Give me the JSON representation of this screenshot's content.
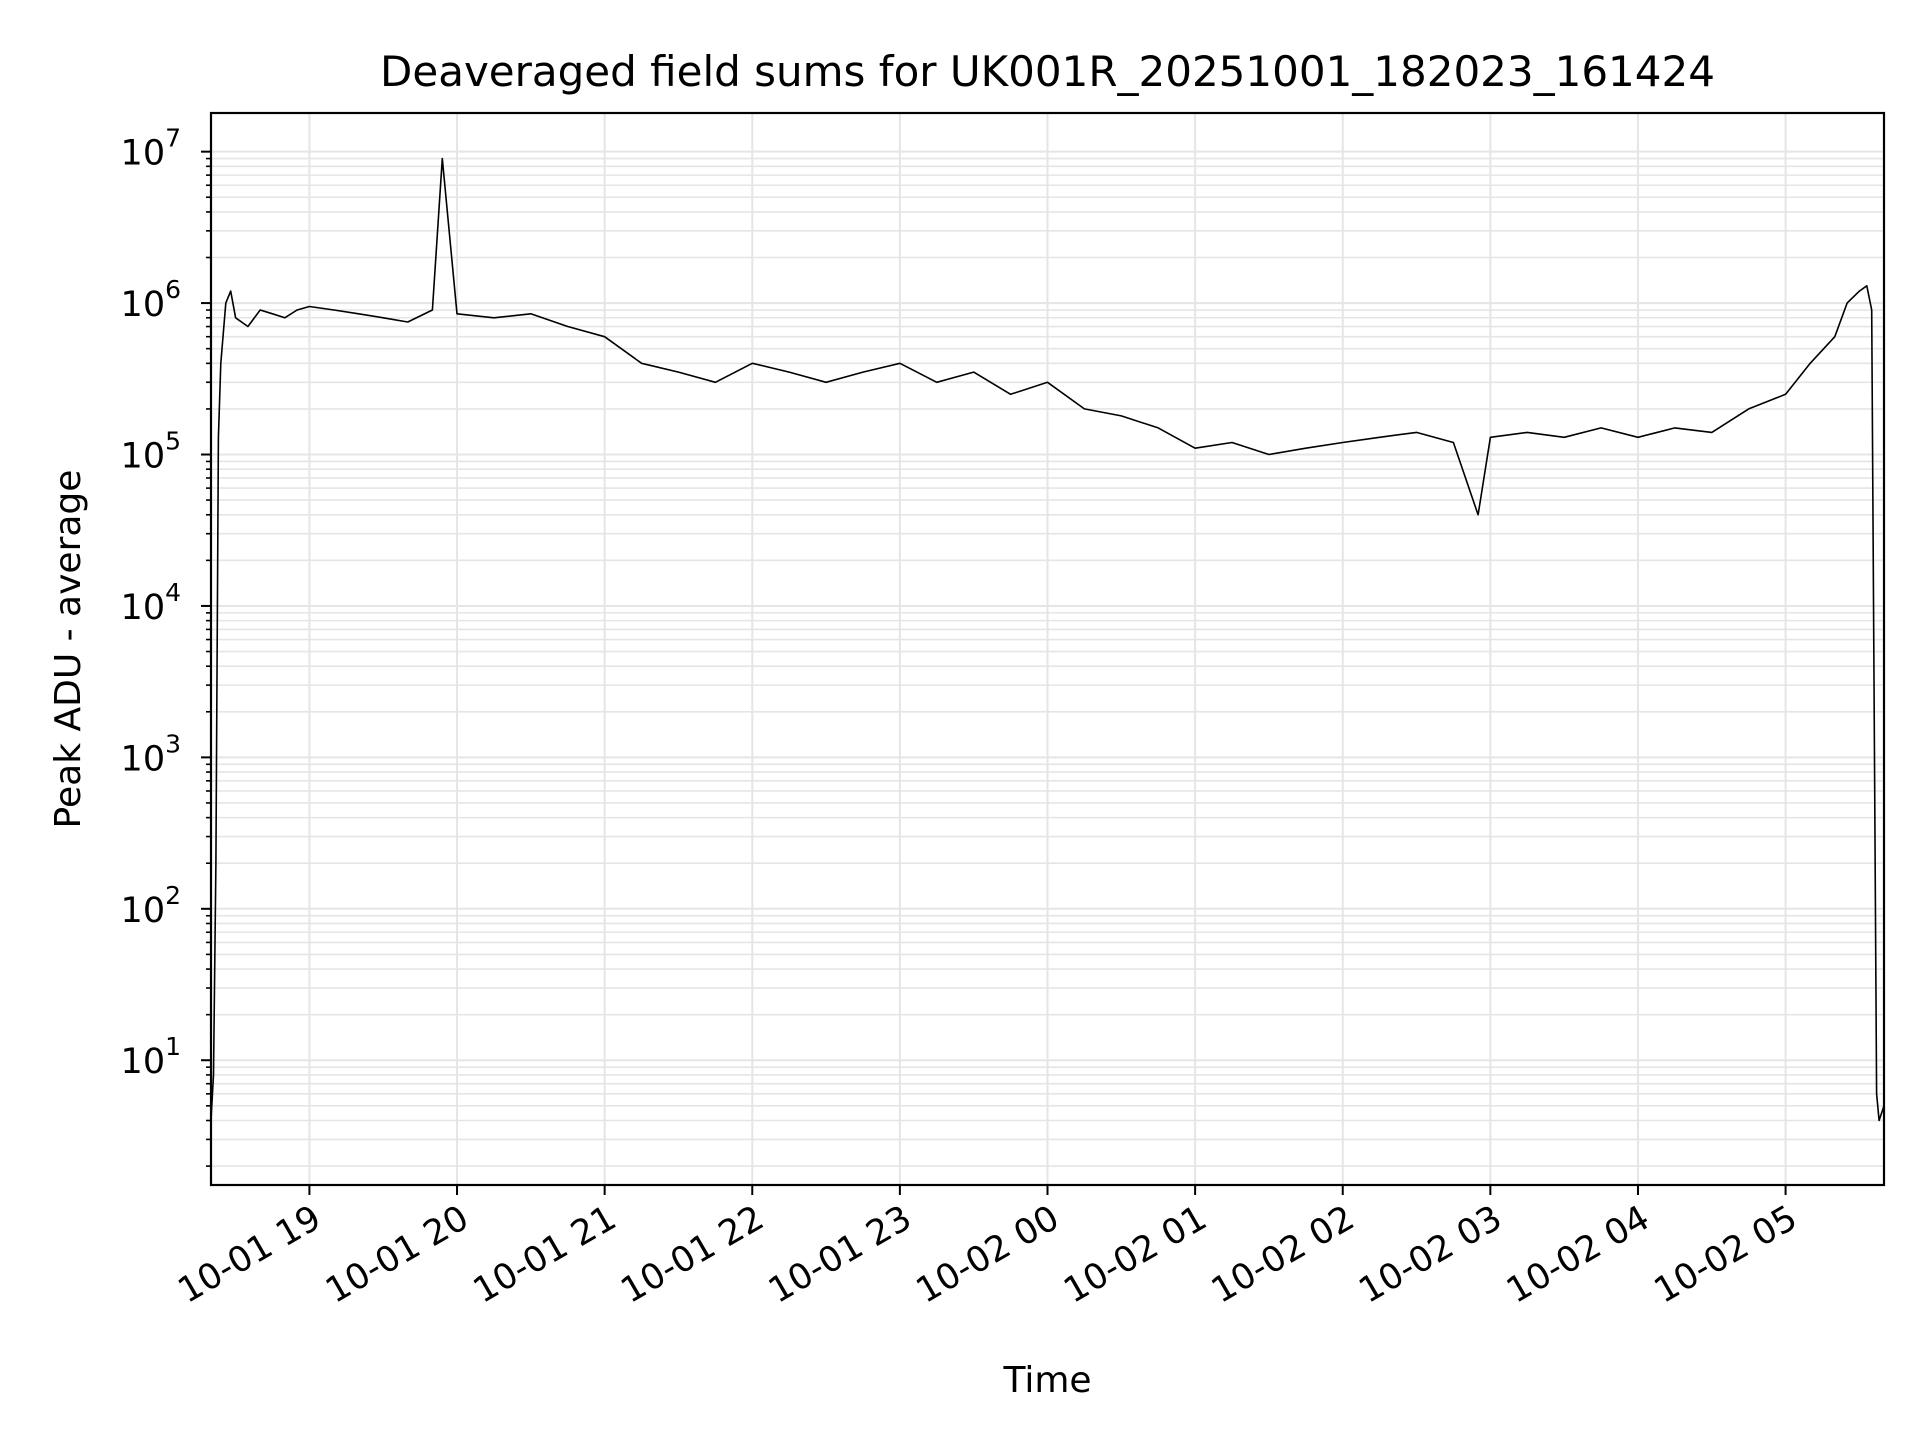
{
  "chart_data": {
    "type": "line",
    "title": "Deaveraged field sums for UK001R_20251001_182023_161424",
    "xlabel": "Time",
    "ylabel": "Peak ADU - average",
    "yscale": "log",
    "ylim": [
      1.5,
      18000000
    ],
    "xlim": [
      "2025-10-01 18:20",
      "2025-10-02 05:40"
    ],
    "grid": true,
    "line_color": "#000000",
    "grid_color": "#e5e5e5",
    "x_ticks": [
      {
        "t": "2025-10-01 19:00",
        "label": "10-01 19"
      },
      {
        "t": "2025-10-01 20:00",
        "label": "10-01 20"
      },
      {
        "t": "2025-10-01 21:00",
        "label": "10-01 21"
      },
      {
        "t": "2025-10-01 22:00",
        "label": "10-01 22"
      },
      {
        "t": "2025-10-01 23:00",
        "label": "10-01 23"
      },
      {
        "t": "2025-10-02 00:00",
        "label": "10-02 00"
      },
      {
        "t": "2025-10-02 01:00",
        "label": "10-02 01"
      },
      {
        "t": "2025-10-02 02:00",
        "label": "10-02 02"
      },
      {
        "t": "2025-10-02 03:00",
        "label": "10-02 03"
      },
      {
        "t": "2025-10-02 04:00",
        "label": "10-02 04"
      },
      {
        "t": "2025-10-02 05:00",
        "label": "10-02 05"
      }
    ],
    "y_ticks": [
      {
        "value": 10,
        "base": "10",
        "exp": "1"
      },
      {
        "value": 100,
        "base": "10",
        "exp": "2"
      },
      {
        "value": 1000,
        "base": "10",
        "exp": "3"
      },
      {
        "value": 10000,
        "base": "10",
        "exp": "4"
      },
      {
        "value": 100000,
        "base": "10",
        "exp": "5"
      },
      {
        "value": 1000000,
        "base": "10",
        "exp": "6"
      },
      {
        "value": 10000000,
        "base": "10",
        "exp": "7"
      }
    ],
    "series": [
      {
        "x": [
          "2025-10-01 18:20",
          "2025-10-01 18:21",
          "2025-10-01 18:22",
          "2025-10-01 18:23",
          "2025-10-01 18:24",
          "2025-10-01 18:26",
          "2025-10-01 18:28",
          "2025-10-01 18:30",
          "2025-10-01 18:35",
          "2025-10-01 18:40",
          "2025-10-01 18:45",
          "2025-10-01 18:50",
          "2025-10-01 18:55",
          "2025-10-01 19:00",
          "2025-10-01 19:10",
          "2025-10-01 19:20",
          "2025-10-01 19:30",
          "2025-10-01 19:40",
          "2025-10-01 19:50",
          "2025-10-01 19:54",
          "2025-10-01 20:00",
          "2025-10-01 20:15",
          "2025-10-01 20:30",
          "2025-10-01 20:45",
          "2025-10-01 21:00",
          "2025-10-01 21:15",
          "2025-10-01 21:30",
          "2025-10-01 21:45",
          "2025-10-01 22:00",
          "2025-10-01 22:15",
          "2025-10-01 22:30",
          "2025-10-01 22:45",
          "2025-10-01 23:00",
          "2025-10-01 23:15",
          "2025-10-01 23:30",
          "2025-10-01 23:45",
          "2025-10-02 00:00",
          "2025-10-02 00:15",
          "2025-10-02 00:30",
          "2025-10-02 00:45",
          "2025-10-02 01:00",
          "2025-10-02 01:15",
          "2025-10-02 01:30",
          "2025-10-02 01:45",
          "2025-10-02 02:00",
          "2025-10-02 02:15",
          "2025-10-02 02:30",
          "2025-10-02 02:45",
          "2025-10-02 02:55",
          "2025-10-02 03:00",
          "2025-10-02 03:15",
          "2025-10-02 03:30",
          "2025-10-02 03:45",
          "2025-10-02 04:00",
          "2025-10-02 04:15",
          "2025-10-02 04:30",
          "2025-10-02 04:45",
          "2025-10-02 05:00",
          "2025-10-02 05:10",
          "2025-10-02 05:20",
          "2025-10-02 05:25",
          "2025-10-02 05:30",
          "2025-10-02 05:33",
          "2025-10-02 05:35",
          "2025-10-02 05:36",
          "2025-10-02 05:37",
          "2025-10-02 05:38",
          "2025-10-02 05:40"
        ],
        "y": [
          4,
          8,
          200,
          130000,
          400000,
          1000000,
          1200000,
          800000,
          700000,
          900000,
          850000,
          800000,
          900000,
          950000,
          900000,
          850000,
          800000,
          750000,
          900000,
          9000000,
          850000,
          800000,
          850000,
          700000,
          600000,
          400000,
          350000,
          300000,
          400000,
          350000,
          300000,
          350000,
          400000,
          300000,
          350000,
          250000,
          300000,
          200000,
          180000,
          150000,
          110000,
          120000,
          100000,
          110000,
          120000,
          130000,
          140000,
          120000,
          40000,
          130000,
          140000,
          130000,
          150000,
          130000,
          150000,
          140000,
          200000,
          250000,
          400000,
          600000,
          1000000,
          1200000,
          1300000,
          900000,
          2000,
          6,
          4,
          5
        ]
      }
    ]
  }
}
